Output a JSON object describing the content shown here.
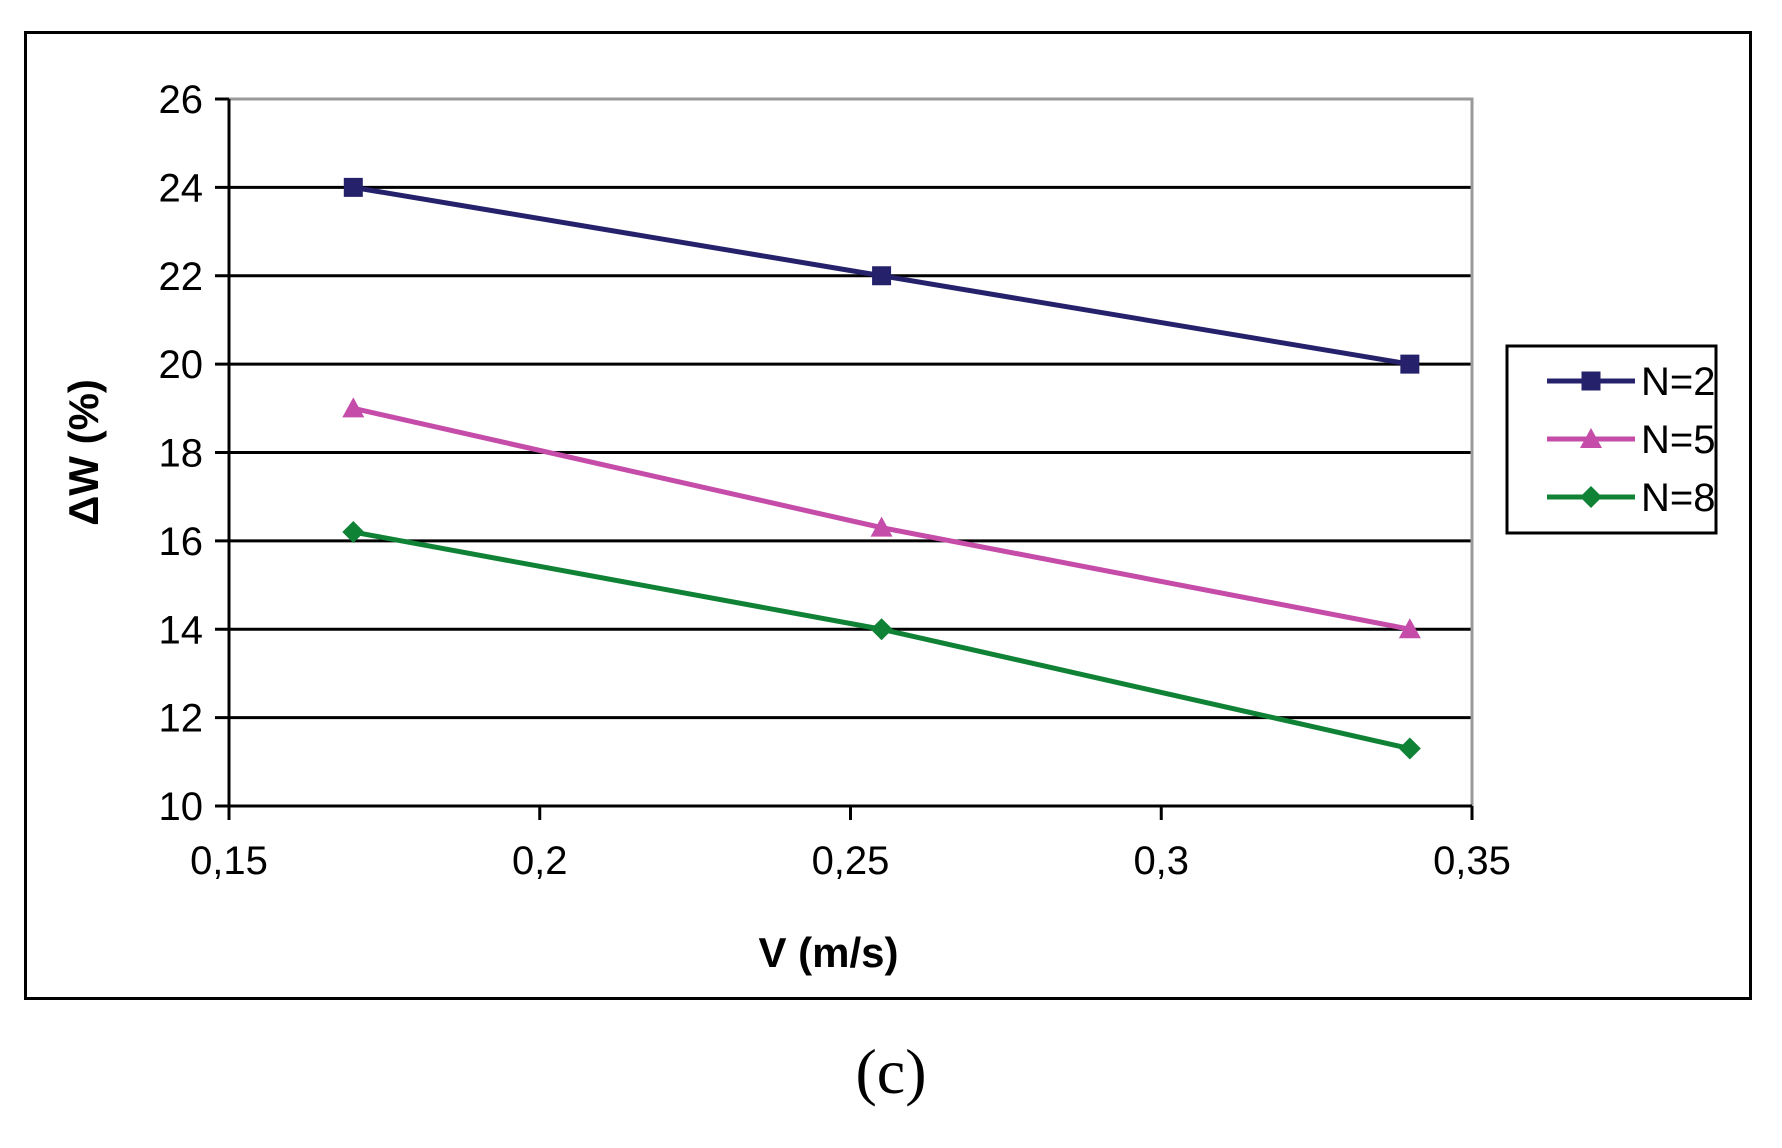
{
  "chart_data": {
    "type": "line",
    "xlabel": "V (m/s)",
    "ylabel": "ΔW (%)",
    "xlim": [
      0.15,
      0.35
    ],
    "ylim": [
      10,
      26
    ],
    "x_ticks": [
      "0,15",
      "0,2",
      "0,25",
      "0,3",
      "0,35"
    ],
    "y_ticks": [
      "10",
      "12",
      "14",
      "16",
      "18",
      "20",
      "22",
      "24",
      "26"
    ],
    "gridlines": "horizontal",
    "legend_position": "right",
    "series": [
      {
        "name": "N=2",
        "color": "#25216b",
        "marker": "square",
        "x": [
          0.17,
          0.255,
          0.34
        ],
        "y": [
          24.0,
          22.0,
          20.0
        ]
      },
      {
        "name": "N=5",
        "color": "#c54ca9",
        "marker": "triangle",
        "x": [
          0.17,
          0.255,
          0.34
        ],
        "y": [
          19.0,
          16.3,
          14.0
        ]
      },
      {
        "name": "N=8",
        "color": "#108235",
        "marker": "diamond",
        "x": [
          0.17,
          0.255,
          0.34
        ],
        "y": [
          16.2,
          14.0,
          11.3
        ]
      }
    ]
  },
  "panel_label": "(c)"
}
